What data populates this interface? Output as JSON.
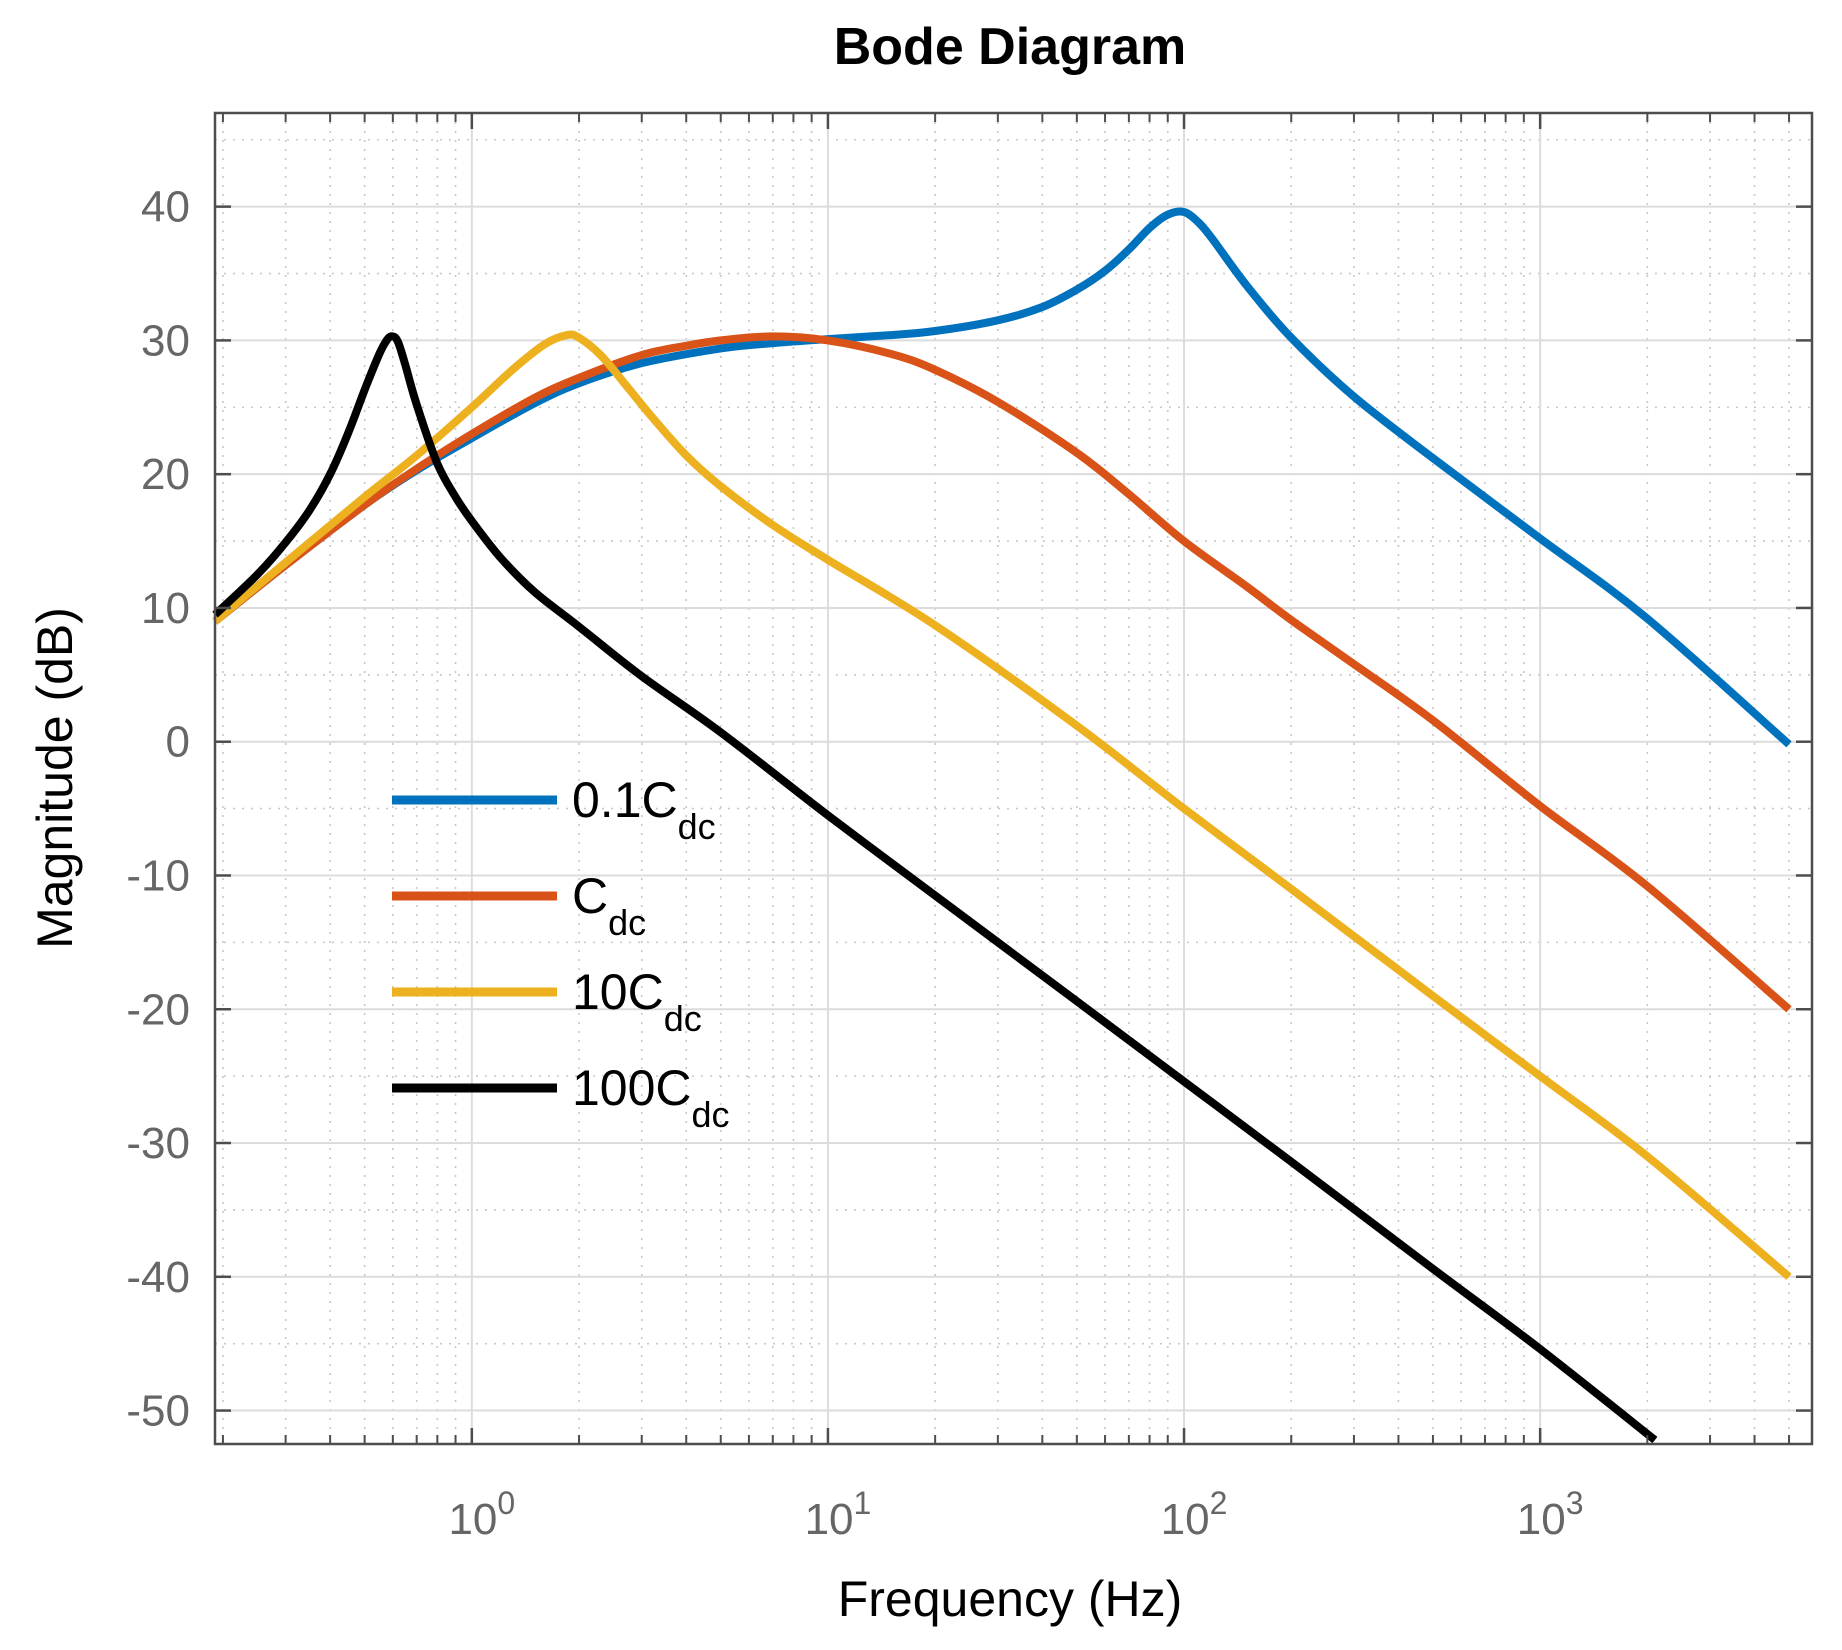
{
  "chart_data": {
    "type": "line",
    "title": "Bode Diagram",
    "xlabel": "Frequency  (Hz)",
    "ylabel": "Magnitude (dB)",
    "xscale": "log",
    "xlim": [
      0.19,
      5800
    ],
    "ylim": [
      -52.5,
      47
    ],
    "x_ticks": [
      {
        "value": 1,
        "base": "10",
        "exp": "0"
      },
      {
        "value": 10,
        "base": "10",
        "exp": "1"
      },
      {
        "value": 100,
        "base": "10",
        "exp": "2"
      },
      {
        "value": 1000,
        "base": "10",
        "exp": "3"
      }
    ],
    "y_ticks": [
      40,
      30,
      20,
      10,
      0,
      -10,
      -20,
      -30,
      -40,
      -50
    ],
    "grid": true,
    "legend_position": "center-left",
    "series": [
      {
        "name": "0.1Cdc",
        "label_main": "0.1C",
        "label_sub": "dc",
        "color": "#0072BD",
        "x": [
          0.19,
          0.3,
          0.5,
          0.7,
          1,
          1.5,
          2,
          3,
          5,
          7,
          10,
          15,
          20,
          30,
          40,
          50,
          60,
          70,
          80,
          90,
          100,
          110,
          120,
          150,
          200,
          300,
          500,
          1000,
          2000,
          5000
        ],
        "y": [
          9,
          13.2,
          17.7,
          20.3,
          22.7,
          25.3,
          26.8,
          28.3,
          29.4,
          29.8,
          30.1,
          30.4,
          30.7,
          31.5,
          32.5,
          33.8,
          35.2,
          36.8,
          38.4,
          39.4,
          39.6,
          38.8,
          37.6,
          34.1,
          30.2,
          25.8,
          21.2,
          15.2,
          9.2,
          -0.2
        ]
      },
      {
        "name": "Cdc",
        "label_main": "C",
        "label_sub": "dc",
        "color": "#D95319",
        "x": [
          0.19,
          0.3,
          0.5,
          0.7,
          1,
          1.5,
          2,
          3,
          4,
          5,
          7,
          10,
          15,
          20,
          30,
          50,
          70,
          100,
          150,
          200,
          300,
          500,
          1000,
          2000,
          5000
        ],
        "y": [
          9,
          13.2,
          17.7,
          20.4,
          23,
          25.7,
          27.2,
          28.9,
          29.6,
          30.0,
          30.3,
          30.0,
          29.0,
          27.8,
          25.4,
          21.6,
          18.5,
          15,
          11.6,
          9.1,
          5.8,
          1.6,
          -4.8,
          -10.8,
          -20
        ]
      },
      {
        "name": "10Cdc",
        "label_main": "10C",
        "label_sub": "dc",
        "color": "#EDB120",
        "x": [
          0.19,
          0.3,
          0.5,
          0.7,
          1,
          1.3,
          1.6,
          1.85,
          2,
          2.3,
          2.7,
          3.2,
          4,
          5,
          7,
          10,
          20,
          50,
          100,
          200,
          500,
          1000,
          2000,
          5000
        ],
        "y": [
          9,
          13.4,
          18.3,
          21.4,
          25,
          27.8,
          29.7,
          30.4,
          30.2,
          28.9,
          26.7,
          24.3,
          21.4,
          19.1,
          16.2,
          13.6,
          8.7,
          1.2,
          -5,
          -11,
          -19,
          -25,
          -31,
          -40
        ]
      },
      {
        "name": "100Cdc",
        "label_main": "100C",
        "label_sub": "dc",
        "color": "#000000",
        "x": [
          0.19,
          0.25,
          0.3,
          0.35,
          0.4,
          0.45,
          0.5,
          0.55,
          0.58,
          0.6,
          0.62,
          0.65,
          0.7,
          0.8,
          0.9,
          1,
          1.2,
          1.5,
          2,
          3,
          5,
          10,
          20,
          50,
          100,
          200,
          500,
          1000,
          2100
        ],
        "y": [
          9.5,
          12.5,
          14.9,
          17.3,
          20,
          23.1,
          26.3,
          29,
          30.1,
          30.3,
          29.9,
          28.2,
          25.2,
          20.8,
          18.3,
          16.5,
          13.8,
          11.2,
          8.6,
          4.9,
          0.7,
          -5.5,
          -11.5,
          -19.4,
          -25.4,
          -31.4,
          -39.4,
          -45.4,
          -52.2
        ]
      }
    ]
  }
}
